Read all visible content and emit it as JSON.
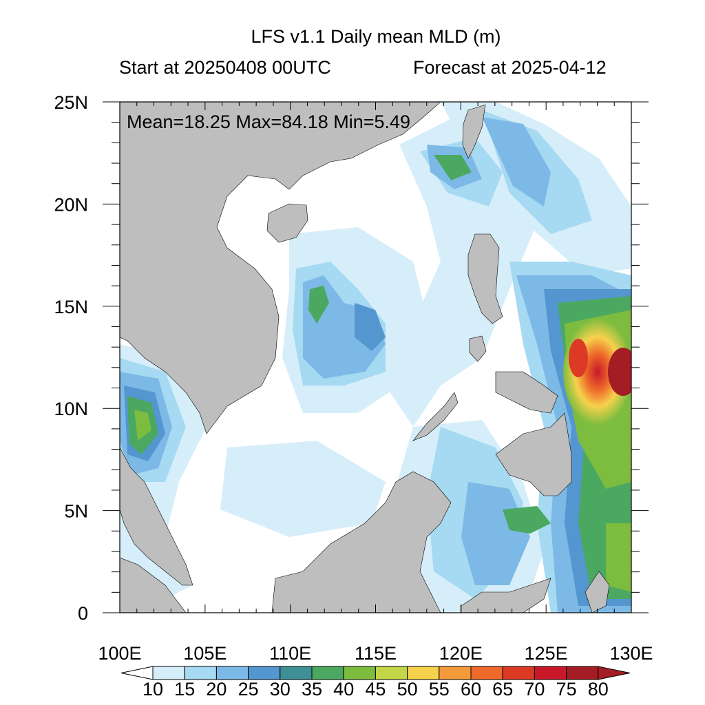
{
  "title": "LFS v1.1 Daily mean MLD (m)",
  "subtitle_left": "Start at 20250408 00UTC",
  "subtitle_right": "Forecast at 2025-04-12",
  "stats": "Mean=18.25  Max=84.18  Min=5.49",
  "map": {
    "lon_range": [
      100,
      130
    ],
    "lat_range": [
      0,
      25
    ],
    "lon_ticks": [
      {
        "value": 100,
        "label": "100E"
      },
      {
        "value": 105,
        "label": "105E"
      },
      {
        "value": 110,
        "label": "110E"
      },
      {
        "value": 115,
        "label": "115E"
      },
      {
        "value": 120,
        "label": "120E"
      },
      {
        "value": 125,
        "label": "125E"
      },
      {
        "value": 130,
        "label": "130E"
      }
    ],
    "lat_ticks": [
      {
        "value": 0,
        "label": "0"
      },
      {
        "value": 5,
        "label": "5N"
      },
      {
        "value": 10,
        "label": "10N"
      },
      {
        "value": 15,
        "label": "15N"
      },
      {
        "value": 20,
        "label": "20N"
      },
      {
        "value": 25,
        "label": "25N"
      }
    ],
    "land_color": "#bebebe",
    "ocean_low_color": "#ffffff"
  },
  "colorbar": {
    "labels": [
      "10",
      "15",
      "20",
      "25",
      "30",
      "35",
      "40",
      "45",
      "50",
      "55",
      "60",
      "65",
      "70",
      "75",
      "80"
    ],
    "colors": [
      "#ffffff",
      "#d6eef9",
      "#a6d9f2",
      "#7db9e6",
      "#5496cf",
      "#3e8f96",
      "#4aa860",
      "#7cbc3f",
      "#c2d647",
      "#f6d24c",
      "#f59a3a",
      "#ee6a2a",
      "#dd3a26",
      "#c8182a",
      "#a51d24",
      "#a51d24"
    ]
  }
}
